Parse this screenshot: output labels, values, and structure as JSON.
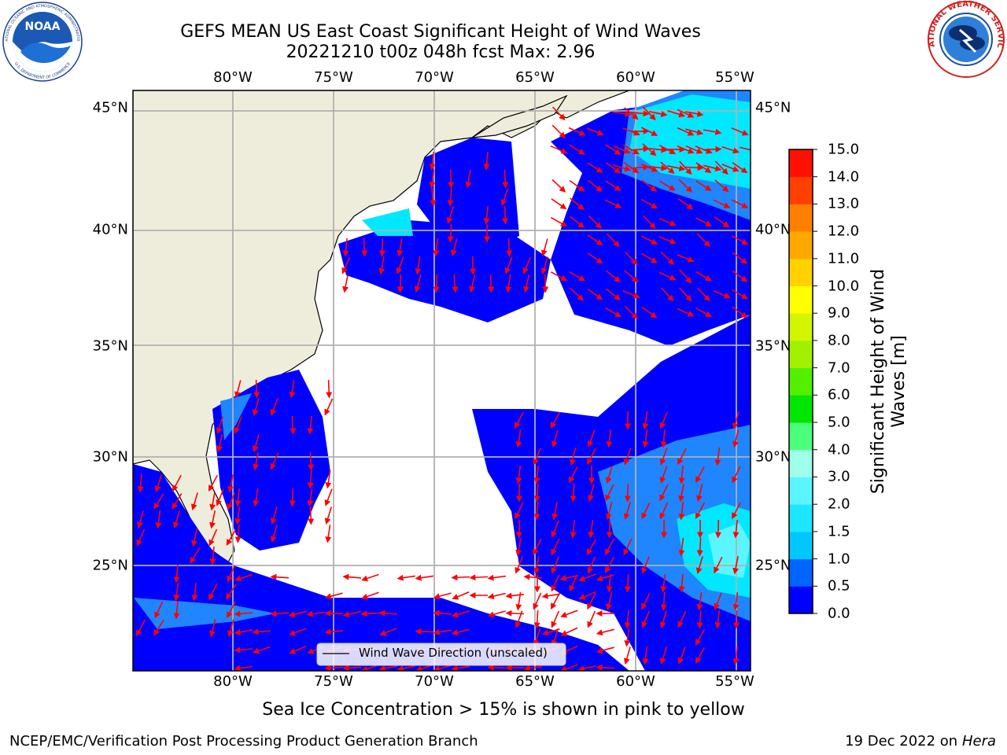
{
  "header": {
    "title_line1": "GEFS MEAN US East Coast Significant Height of Wind Waves",
    "title_line2": "20221210 t00z 048h fcst   Max: 2.96"
  },
  "logos": {
    "noaa_text": "NOAA",
    "noaa_ring_text": "NATIONAL OCEANIC AND ATMOSPHERIC ADMINISTRATION",
    "noaa_ring_text_bottom": "U.S. DEPARTMENT OF COMMERCE",
    "nws_ring_text": "NATIONAL WEATHER SERVICE"
  },
  "axes": {
    "lon_ticks": [
      "80°W",
      "75°W",
      "70°W",
      "65°W",
      "60°W",
      "55°W"
    ],
    "lat_ticks": [
      "45°N",
      "40°N",
      "35°N",
      "30°N",
      "25°N"
    ]
  },
  "legend": {
    "label": "Wind Wave Direction (unscaled)"
  },
  "colorbar": {
    "title": "Significant Height of Wind Waves [m]",
    "labels": [
      "0.0",
      "0.5",
      "1.0",
      "1.5",
      "2.0",
      "3.0",
      "4.0",
      "5.0",
      "6.0",
      "7.0",
      "8.0",
      "9.0",
      "10.0",
      "11.0",
      "12.0",
      "13.0",
      "14.0",
      "15.0"
    ],
    "colors": [
      "#0000ff",
      "#0064ff",
      "#00c8ff",
      "#1ee6ff",
      "#5af5ff",
      "#a0ffeb",
      "#4cff7a",
      "#00e600",
      "#50f000",
      "#a0f000",
      "#d2f500",
      "#ffff00",
      "#ffd200",
      "#ffa800",
      "#ff8000",
      "#ff4000",
      "#ff1000"
    ]
  },
  "colors": {
    "land": "#eeeddb",
    "ocean_low": "#0000ff",
    "ocean_mid": "#1f86ff",
    "ocean_cyan": "#00e8ff",
    "arrow": "#ff0000",
    "grid": "#b0b0b0"
  },
  "footer": {
    "subtitle": "Sea Ice Concentration > 15% is shown in pink to yellow",
    "left": "NCEP/EMC/Verification Post Processing Product Generation Branch",
    "right_date": "19 Dec 2022 on",
    "right_machine": "Hera"
  }
}
